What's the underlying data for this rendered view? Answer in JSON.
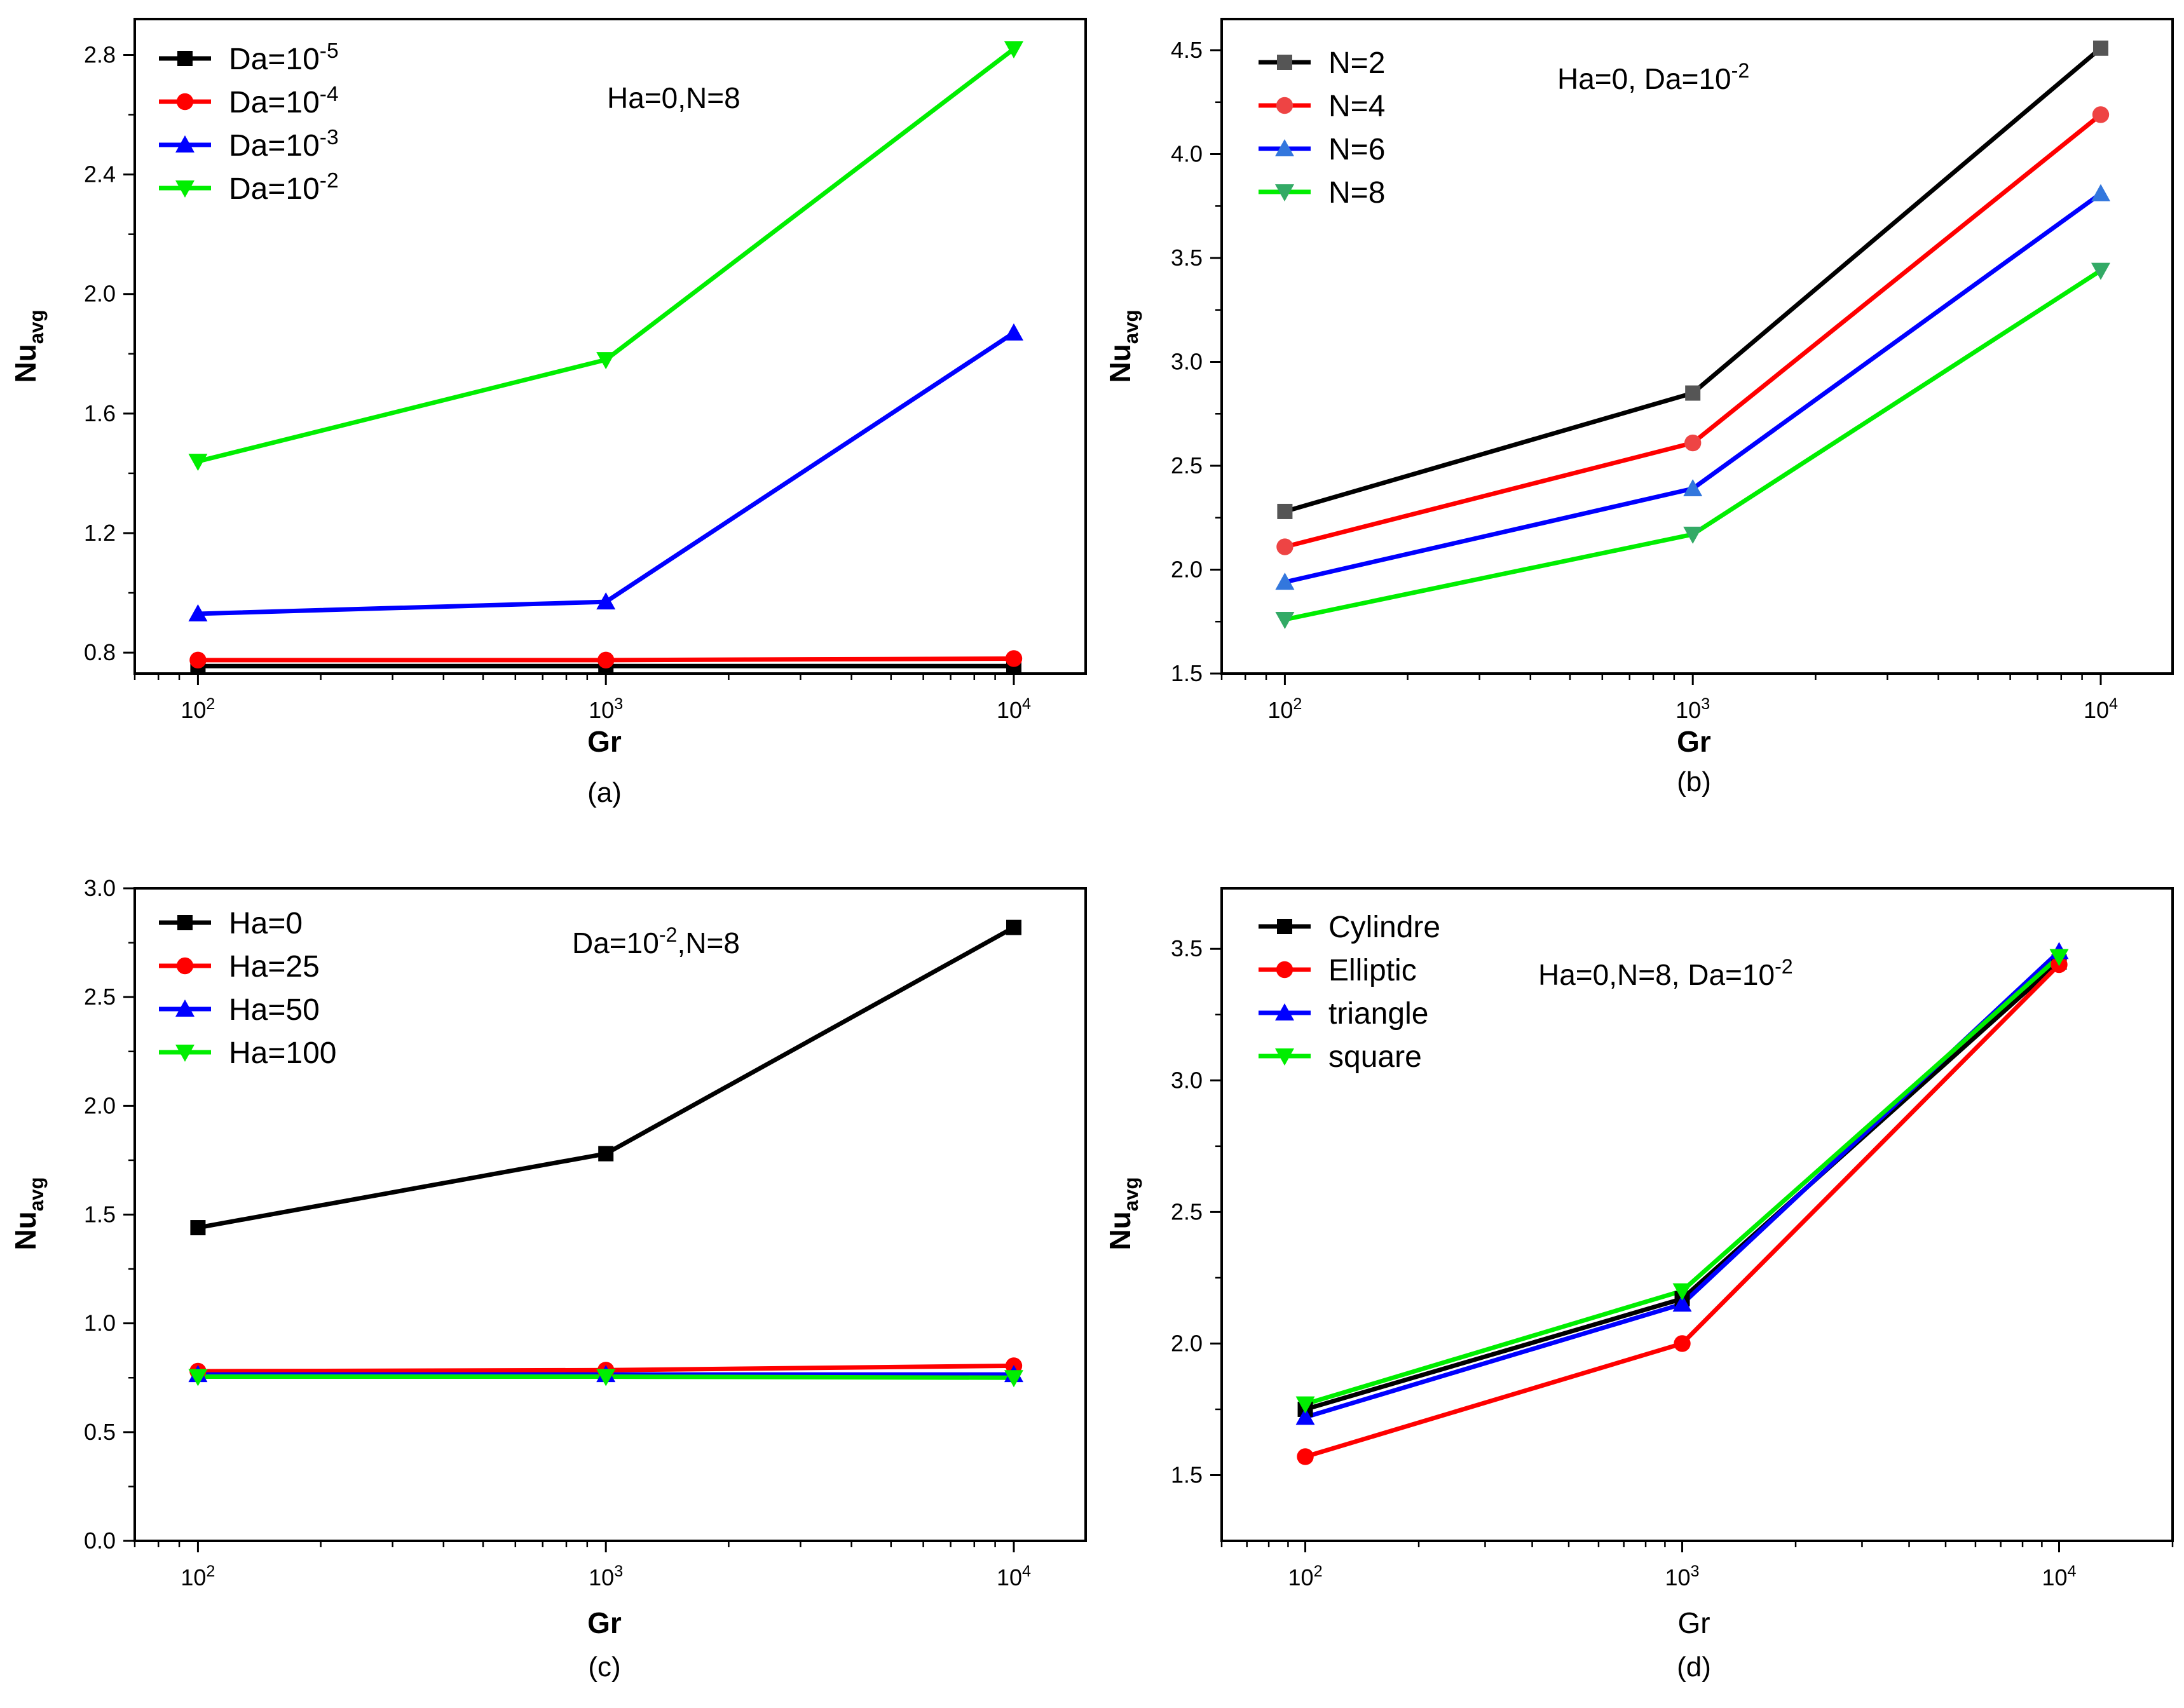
{
  "chart_data": [
    {
      "type": "line",
      "panel": "(a)",
      "xlabel": "Gr",
      "ylabel": "Nu",
      "ylabel_sub": "avg",
      "xscale": "log",
      "xlim": [
        70,
        15000
      ],
      "ylim": [
        0.73,
        2.92
      ],
      "y_ticks": [
        "0.8",
        "1.2",
        "1.6",
        "2.0",
        "2.4",
        "2.8"
      ],
      "y_tick_values": [
        0.8,
        1.2,
        1.6,
        2.0,
        2.4,
        2.8
      ],
      "y_minor_ticks": [
        1.0,
        1.4,
        1.8,
        2.2,
        2.6
      ],
      "x_ticks": [
        {
          "base": "10",
          "exp": "2",
          "value": 100
        },
        {
          "base": "10",
          "exp": "3",
          "value": 1000
        },
        {
          "base": "10",
          "exp": "4",
          "value": 10000
        }
      ],
      "annotation": {
        "text": "Ha=0,N=8",
        "parts": [
          {
            "t": "Ha=0,N=8"
          }
        ]
      },
      "legend_placement": "top-left",
      "x": [
        100,
        1000,
        10000
      ],
      "series": [
        {
          "name": "Da=10-5",
          "label": [
            {
              "t": "Da=10"
            },
            {
              "t": "-5",
              "sup": true
            }
          ],
          "color": "#000000",
          "marker": "square",
          "values": [
            0.755,
            0.755,
            0.755
          ]
        },
        {
          "name": "Da=10-4",
          "label": [
            {
              "t": "Da=10"
            },
            {
              "t": "-4",
              "sup": true
            }
          ],
          "color": "#ff0000",
          "marker": "circle",
          "values": [
            0.775,
            0.775,
            0.78
          ]
        },
        {
          "name": "Da=10-3",
          "label": [
            {
              "t": "Da=10"
            },
            {
              "t": "-3",
              "sup": true
            }
          ],
          "color": "#0000ff",
          "marker": "triangle-up",
          "values": [
            0.93,
            0.97,
            1.87
          ]
        },
        {
          "name": "Da=10-2",
          "label": [
            {
              "t": "Da=10"
            },
            {
              "t": "-2",
              "sup": true
            }
          ],
          "color": "#00ee00",
          "marker": "triangle-down",
          "values": [
            1.44,
            1.78,
            2.82
          ]
        }
      ]
    },
    {
      "type": "line",
      "panel": "(b)",
      "xlabel": "Gr",
      "ylabel": "Nu",
      "ylabel_sub": "avg",
      "xscale": "log",
      "xlim": [
        70,
        15000
      ],
      "ylim": [
        1.5,
        4.65
      ],
      "y_ticks": [
        "1.5",
        "2.0",
        "2.5",
        "3.0",
        "3.5",
        "4.0",
        "4.5"
      ],
      "y_tick_values": [
        1.5,
        2.0,
        2.5,
        3.0,
        3.5,
        4.0,
        4.5
      ],
      "y_minor_ticks": [
        1.75,
        2.25,
        2.75,
        3.25,
        3.75,
        4.25
      ],
      "x_ticks": [
        {
          "base": "10",
          "exp": "2",
          "value": 100
        },
        {
          "base": "10",
          "exp": "3",
          "value": 1000
        },
        {
          "base": "10",
          "exp": "4",
          "value": 10000
        }
      ],
      "annotation": {
        "text": "Ha=0, Da=10-2",
        "parts": [
          {
            "t": "Ha=0, Da=10"
          },
          {
            "t": "-2",
            "sup": true
          }
        ]
      },
      "legend_placement": "top-left",
      "x": [
        100,
        1000,
        10000
      ],
      "series": [
        {
          "name": "N=2",
          "label": [
            {
              "t": "N=2"
            }
          ],
          "color": "#000000",
          "marker_color": "#555555",
          "marker": "square",
          "values": [
            2.28,
            2.85,
            4.51
          ]
        },
        {
          "name": "N=4",
          "label": [
            {
              "t": "N=4"
            }
          ],
          "color": "#ff0000",
          "marker_color": "#ee4444",
          "marker": "circle",
          "values": [
            2.11,
            2.61,
            4.19
          ]
        },
        {
          "name": "N=6",
          "label": [
            {
              "t": "N=6"
            }
          ],
          "color": "#0000ff",
          "marker_color": "#3377dd",
          "marker": "triangle-up",
          "values": [
            1.94,
            2.39,
            3.81
          ]
        },
        {
          "name": "N=8",
          "label": [
            {
              "t": "N=8"
            }
          ],
          "color": "#00ee00",
          "marker_color": "#33aa66",
          "marker": "triangle-down",
          "values": [
            1.76,
            2.17,
            3.44
          ]
        }
      ]
    },
    {
      "type": "line",
      "panel": "(c)",
      "xlabel": "Gr",
      "ylabel": "Nu",
      "ylabel_sub": "avg",
      "xscale": "log",
      "xlim": [
        70,
        15000
      ],
      "ylim": [
        0.0,
        3.0
      ],
      "y_ticks": [
        "0.0",
        "0.5",
        "1.0",
        "1.5",
        "2.0",
        "2.5",
        "3.0"
      ],
      "y_tick_values": [
        0.0,
        0.5,
        1.0,
        1.5,
        2.0,
        2.5,
        3.0
      ],
      "y_minor_ticks": [
        0.25,
        0.75,
        1.25,
        1.75,
        2.25,
        2.75
      ],
      "x_ticks": [
        {
          "base": "10",
          "exp": "2",
          "value": 100
        },
        {
          "base": "10",
          "exp": "3",
          "value": 1000
        },
        {
          "base": "10",
          "exp": "4",
          "value": 10000
        }
      ],
      "annotation": {
        "text": "Da=10-2,N=8",
        "parts": [
          {
            "t": "Da=10"
          },
          {
            "t": "-2",
            "sup": true
          },
          {
            "t": ",N=8"
          }
        ]
      },
      "legend_placement": "top-left",
      "x": [
        100,
        1000,
        10000
      ],
      "series": [
        {
          "name": "Ha=0",
          "label": [
            {
              "t": "Ha=0"
            }
          ],
          "color": "#000000",
          "marker": "square",
          "values": [
            1.44,
            1.78,
            2.82
          ]
        },
        {
          "name": "Ha=25",
          "label": [
            {
              "t": "Ha=25"
            }
          ],
          "color": "#ff0000",
          "marker": "circle",
          "values": [
            0.78,
            0.785,
            0.805
          ]
        },
        {
          "name": "Ha=50",
          "label": [
            {
              "t": "Ha=50"
            }
          ],
          "color": "#0000ff",
          "marker": "triangle-up",
          "values": [
            0.765,
            0.765,
            0.765
          ]
        },
        {
          "name": "Ha=100",
          "label": [
            {
              "t": "Ha=100"
            }
          ],
          "color": "#00ee00",
          "marker": "triangle-down",
          "values": [
            0.755,
            0.755,
            0.75
          ]
        }
      ]
    },
    {
      "type": "line",
      "panel": "(d)",
      "xlabel": "Gr",
      "xlabel_weight": "normal",
      "ylabel": "Nu",
      "ylabel_sub": "avg",
      "xscale": "log",
      "xlim": [
        60,
        20000
      ],
      "ylim": [
        1.25,
        3.73
      ],
      "y_ticks": [
        "1.5",
        "2.0",
        "2.5",
        "3.0",
        "3.5"
      ],
      "y_tick_values": [
        1.5,
        2.0,
        2.5,
        3.0,
        3.5
      ],
      "y_minor_ticks": [
        1.75,
        2.25,
        2.75,
        3.25
      ],
      "x_ticks": [
        {
          "base": "10",
          "exp": "2",
          "value": 100
        },
        {
          "base": "10",
          "exp": "3",
          "value": 1000
        },
        {
          "base": "10",
          "exp": "4",
          "value": 10000
        }
      ],
      "annotation": {
        "text": "Ha=0,N=8, Da=10-2",
        "parts": [
          {
            "t": "Ha=0,N=8, Da=10"
          },
          {
            "t": "-2",
            "sup": true
          }
        ]
      },
      "legend_placement": "top-left",
      "x": [
        100,
        1000,
        10000
      ],
      "series": [
        {
          "name": "Cylindre",
          "label": [
            {
              "t": "Cylindre"
            }
          ],
          "color": "#000000",
          "marker": "square",
          "values": [
            1.75,
            2.17,
            3.45
          ]
        },
        {
          "name": "Elliptic",
          "label": [
            {
              "t": "Elliptic"
            }
          ],
          "color": "#ff0000",
          "marker": "circle",
          "values": [
            1.57,
            2.0,
            3.44
          ]
        },
        {
          "name": "triangle",
          "label": [
            {
              "t": "triangle"
            }
          ],
          "color": "#0000ff",
          "marker": "triangle-up",
          "values": [
            1.72,
            2.15,
            3.49
          ]
        },
        {
          "name": "square",
          "label": [
            {
              "t": "square"
            }
          ],
          "color": "#00ee00",
          "marker": "triangle-down",
          "values": [
            1.77,
            2.2,
            3.47
          ]
        }
      ]
    }
  ]
}
